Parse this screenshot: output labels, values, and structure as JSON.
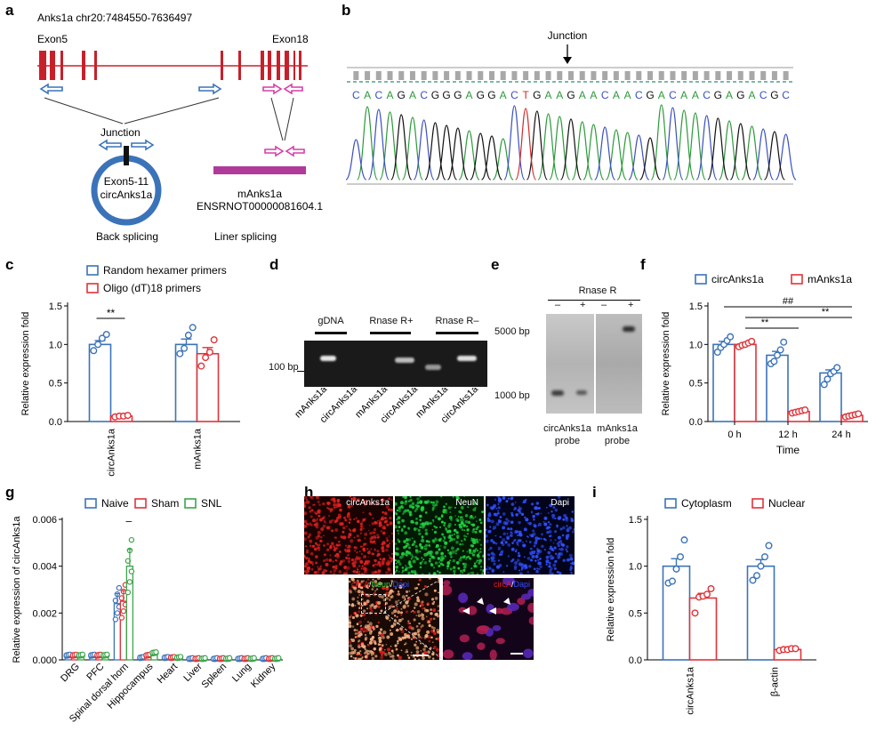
{
  "labels": {
    "a": "a",
    "b": "b",
    "c": "c",
    "d": "d",
    "e": "e",
    "f": "f",
    "g": "g",
    "h": "h",
    "i": "i"
  },
  "panel_a": {
    "header": "Anks1a chr20:7484550-7636497",
    "exon_left": "Exon5",
    "exon_right": "Exon18",
    "junction": "Junction",
    "circ_line1": "Exon5-11",
    "circ_line2": "circAnks1a",
    "linear_name": "mAnks1a",
    "linear_id": "ENSRNOT00000081604.1",
    "back_splicing": "Back splicing",
    "liner_splicing": "Liner splicing",
    "colors": {
      "exon": "#c8202a",
      "circle": "#3b73b9",
      "linear": "#b03a9a"
    }
  },
  "panel_b": {
    "junction": "Junction",
    "sequence": "CACAGACGGGAGGACTGAAGAACAACGACAACGAGACGC"
  },
  "panel_c": {
    "legend": [
      "Random hexamer primers",
      "Oligo (dT)18 primers"
    ],
    "significance": "**",
    "chart_data": {
      "type": "bar",
      "categories": [
        "circAnks1a",
        "mAnks1a"
      ],
      "series": [
        {
          "name": "Random hexamer primers",
          "values": [
            1.0,
            1.0
          ],
          "color": "#3b73b9"
        },
        {
          "name": "Oligo (dT)18 primers",
          "values": [
            0.07,
            0.88
          ],
          "color": "#e0343a"
        }
      ],
      "points": [
        [
          [
            0.92,
            1.0,
            1.08,
            1.13
          ],
          [
            0.06,
            0.07,
            0.07,
            0.08
          ]
        ],
        [
          [
            0.88,
            0.95,
            1.12,
            1.22
          ],
          [
            0.72,
            0.83,
            0.9,
            1.06
          ]
        ]
      ],
      "errors": [
        [
          0.05,
          0.005
        ],
        [
          0.07,
          0.08
        ]
      ],
      "ylabel": "Relative expression fold",
      "ylim": [
        0,
        1.5
      ],
      "yticks": [
        "0.0",
        "0.5",
        "1.0",
        "1.5"
      ]
    }
  },
  "panel_d": {
    "headers": [
      "gDNA",
      "Rnase R+",
      "Rnase R–"
    ],
    "marker": "100 bp",
    "lanes": [
      "mAnks1a",
      "circAnks1a",
      "mAnks1a",
      "circAnks1a",
      "mAnks1a",
      "circAnks1a"
    ]
  },
  "panel_e": {
    "header": "Rnase R",
    "signs": [
      "–",
      "+",
      "–",
      "+"
    ],
    "markers": [
      "5000 bp",
      "1000 bp"
    ],
    "probes": [
      [
        "circAnks1a",
        "probe"
      ],
      [
        "mAnks1a",
        "probe"
      ]
    ]
  },
  "panel_f": {
    "legend": [
      "circAnks1a",
      "mAnks1a"
    ],
    "significance": [
      "##",
      "**",
      "**"
    ],
    "chart_data": {
      "type": "bar",
      "categories": [
        "0 h",
        "12 h",
        "24 h"
      ],
      "series": [
        {
          "name": "circAnks1a",
          "values": [
            1.0,
            0.86,
            0.63
          ],
          "color": "#3b73b9"
        },
        {
          "name": "mAnks1a",
          "values": [
            1.0,
            0.13,
            0.08
          ],
          "color": "#e0343a"
        }
      ],
      "points": [
        [
          [
            0.9,
            0.96,
            1.0,
            1.05,
            1.1
          ],
          [
            0.97,
            0.99,
            1.0,
            1.02,
            1.04
          ]
        ],
        [
          [
            0.75,
            0.78,
            0.86,
            0.93,
            1.03
          ],
          [
            0.11,
            0.12,
            0.13,
            0.14,
            0.15
          ]
        ],
        [
          [
            0.48,
            0.55,
            0.62,
            0.65,
            0.7
          ],
          [
            0.06,
            0.07,
            0.08,
            0.09,
            0.1
          ]
        ]
      ],
      "errors": [
        [
          0.04,
          0.015
        ],
        [
          0.05,
          0.01
        ],
        [
          0.04,
          0.01
        ]
      ],
      "xlabel": "Time",
      "ylabel": "Relative expression fold",
      "ylim": [
        0,
        1.5
      ],
      "yticks": [
        "0.0",
        "0.5",
        "1.0",
        "1.5"
      ]
    }
  },
  "panel_g": {
    "legend": [
      "Naive",
      "Sham",
      "SNL"
    ],
    "significance": "–",
    "chart_data": {
      "type": "bar",
      "categories": [
        "DRG",
        "PFC",
        "Spinal dorsal horn",
        "Hippocampus",
        "Heart",
        "Liver",
        "Spleen",
        "Lung",
        "Kidney"
      ],
      "series": [
        {
          "name": "Naive",
          "values": [
            0.0002,
            0.0002,
            0.0024,
            0.0001,
            0.0001,
            5e-05,
            5e-05,
            5e-05,
            5e-05
          ],
          "color": "#3b73b9"
        },
        {
          "name": "Sham",
          "values": [
            0.0002,
            0.0002,
            0.0025,
            0.0002,
            0.0001,
            5e-05,
            5e-05,
            5e-05,
            5e-05
          ],
          "color": "#e0343a"
        },
        {
          "name": "SNL",
          "values": [
            0.0002,
            0.0002,
            0.004,
            0.0003,
            0.0001,
            5e-05,
            5e-05,
            5e-05,
            5e-05
          ],
          "color": "#3aa64a"
        }
      ],
      "ylabel": "Relative expression of circAnks1a",
      "ylim": [
        0,
        0.006
      ],
      "yticks": [
        "0.000",
        "0.002",
        "0.004",
        "0.006"
      ]
    }
  },
  "panel_h": {
    "tiles": [
      "circAnks1a",
      "NeuN",
      "Dapi"
    ],
    "merge_label": [
      "circA",
      "/",
      "Neun",
      "/",
      "Dapi"
    ],
    "zoom_label": [
      "circA",
      "/",
      "Dapi"
    ],
    "colors": {
      "red": "#e02020",
      "green": "#20d040",
      "blue": "#3050ff"
    }
  },
  "panel_i": {
    "legend": [
      "Cytoplasm",
      "Nuclear"
    ],
    "chart_data": {
      "type": "bar",
      "categories": [
        "circAnks1a",
        "β-actin"
      ],
      "series": [
        {
          "name": "Cytoplasm",
          "values": [
            1.0,
            1.0
          ],
          "color": "#3b73b9"
        },
        {
          "name": "Nuclear",
          "values": [
            0.66,
            0.11
          ],
          "color": "#e0343a"
        }
      ],
      "points": [
        [
          [
            0.82,
            0.84,
            0.97,
            1.1,
            1.28
          ],
          [
            0.5,
            0.67,
            0.68,
            0.7,
            0.76
          ]
        ],
        [
          [
            0.85,
            0.9,
            1.0,
            1.1,
            1.22
          ],
          [
            0.1,
            0.11,
            0.11,
            0.12,
            0.12
          ]
        ]
      ],
      "errors": [
        [
          0.08,
          0.05
        ],
        [
          0.07,
          0.01
        ]
      ],
      "ylabel": "Relative expression fold",
      "ylim": [
        0,
        1.5
      ],
      "yticks": [
        "0.0",
        "0.5",
        "1.0",
        "1.5"
      ]
    }
  }
}
